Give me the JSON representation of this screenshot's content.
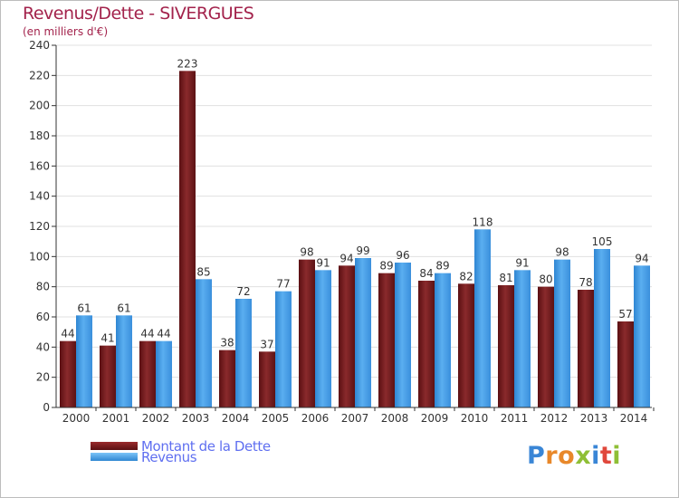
{
  "chart_data": {
    "type": "bar",
    "title": "Revenus/Dette - SIVERGUES",
    "subtitle": "(en milliers d'€)",
    "categories": [
      "2000",
      "2001",
      "2002",
      "2003",
      "2004",
      "2005",
      "2006",
      "2007",
      "2008",
      "2009",
      "2010",
      "2011",
      "2012",
      "2013",
      "2014"
    ],
    "series": [
      {
        "name": "Montant de la Dette",
        "color": "#7a1a1a",
        "values": [
          44,
          41,
          44,
          223,
          38,
          37,
          98,
          94,
          89,
          84,
          82,
          81,
          80,
          78,
          57
        ]
      },
      {
        "name": "Revenus",
        "color": "#4a9be0",
        "values": [
          61,
          61,
          44,
          85,
          72,
          77,
          91,
          99,
          96,
          89,
          118,
          91,
          98,
          105,
          94
        ]
      }
    ],
    "ylim": [
      0,
      240
    ],
    "yticks": [
      0,
      20,
      40,
      60,
      80,
      100,
      120,
      140,
      160,
      180,
      200,
      220,
      240
    ],
    "grid": true,
    "legend_position": "bottom-left"
  },
  "logo": {
    "letters": [
      "P",
      "r",
      "o",
      "x",
      "i",
      "t",
      "i"
    ]
  },
  "colors": {
    "title": "#a3234c",
    "legend_text": "#5f6ff0",
    "axis": "#333333",
    "grid": "#e0e0e0"
  }
}
